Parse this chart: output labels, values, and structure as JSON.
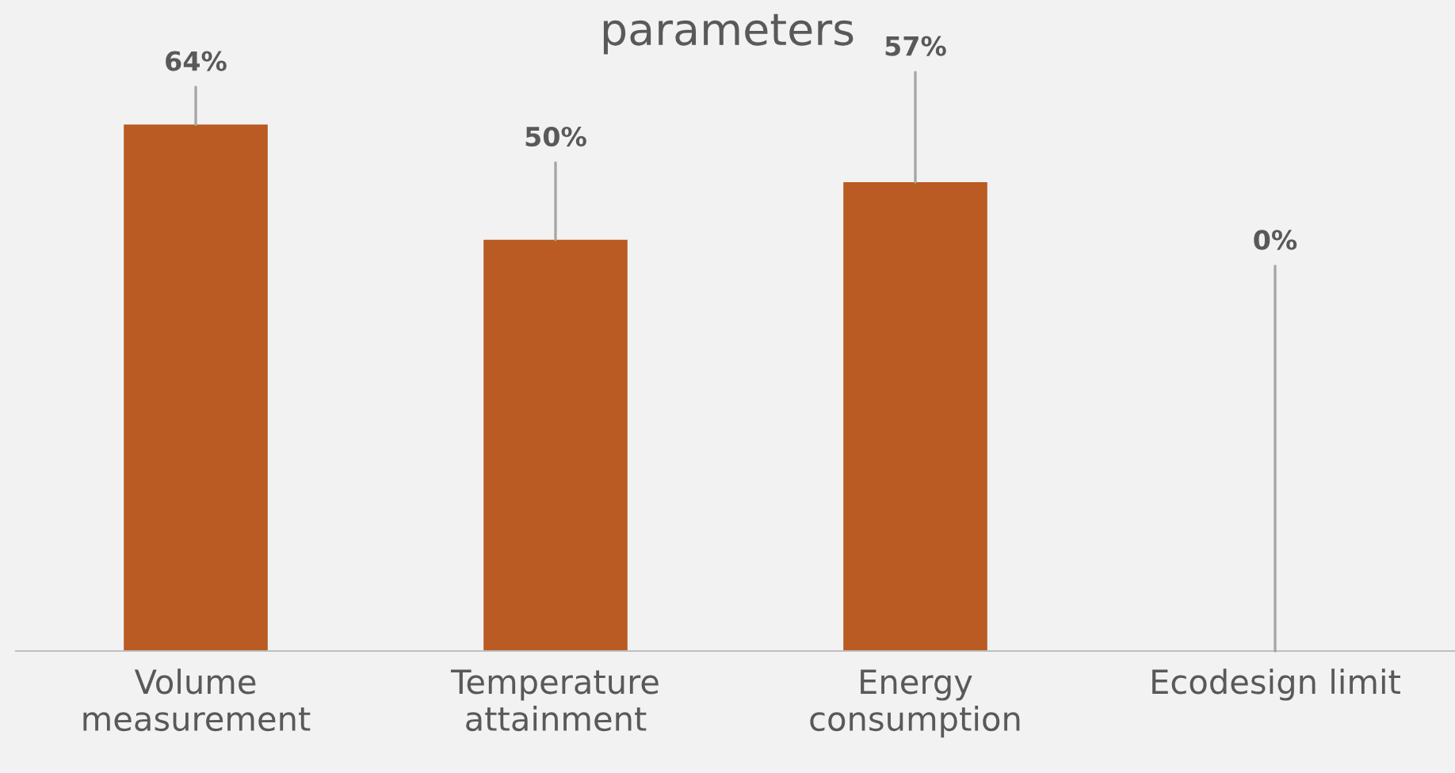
{
  "chart_data": {
    "type": "bar",
    "title": "parameters",
    "categories": [
      "Volume\nmeasurement",
      "Temperature\nattainment",
      "Energy\nconsumption",
      "Ecodesign limit"
    ],
    "values": [
      64,
      50,
      57,
      0
    ],
    "value_labels": [
      "64%",
      "50%",
      "57%",
      "0%"
    ],
    "color": "#b95b22",
    "grid": false,
    "legend": false
  }
}
